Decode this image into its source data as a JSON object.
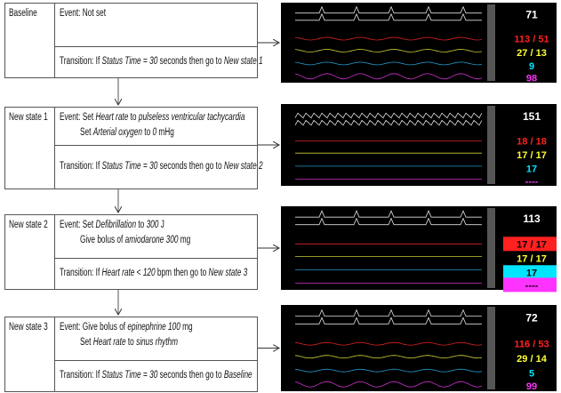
{
  "states": [
    {
      "label": "Baseline",
      "event": [
        [
          "Event: Not set"
        ]
      ],
      "transition": [
        "Transition: If ",
        "Status Time",
        " = ",
        "30",
        " seconds then go to ",
        "New state 1"
      ],
      "monitor": [
        "71",
        "113 / 51",
        "27 / 13",
        "9",
        "98"
      ]
    },
    {
      "label": "New state 1",
      "event": [
        [
          "Event: Set ",
          "Heart rate",
          " to ",
          "pulseless ventricular tachycardia"
        ],
        [
          "Set ",
          "Arterial oxygen",
          " to ",
          "0",
          " mHg"
        ]
      ],
      "transition": [
        "Transition: If ",
        "Status Time",
        " = ",
        "30",
        " seconds then go to ",
        "New state 2"
      ],
      "monitor": [
        "151",
        "18 / 18",
        "17 / 17",
        "17",
        "----"
      ]
    },
    {
      "label": "New state 2",
      "event": [
        [
          "Event: Set ",
          "Defibrillation",
          " to ",
          "300",
          " J"
        ],
        [
          "Give bolus of ",
          "amiodarone 300",
          " mg"
        ]
      ],
      "transition": [
        "Transition: If ",
        "Heart rate",
        " < ",
        "120",
        " bpm then go to ",
        "New state 3"
      ],
      "monitor": [
        "113",
        "17 / 17",
        "17 / 17",
        "17",
        "----"
      ]
    },
    {
      "label": "New state 3",
      "event": [
        [
          "Event: Give bolus of ",
          "epinephrine 100",
          " mg"
        ],
        [
          "Set ",
          "Heart rate",
          " to ",
          "sinus rhythm"
        ]
      ],
      "transition": [
        "Transition: If ",
        "Status Time",
        " = ",
        "30",
        " seconds then go to ",
        "Baseline"
      ],
      "monitor": [
        "72",
        "116 / 53",
        "29 / 14",
        "5",
        "99"
      ]
    }
  ]
}
